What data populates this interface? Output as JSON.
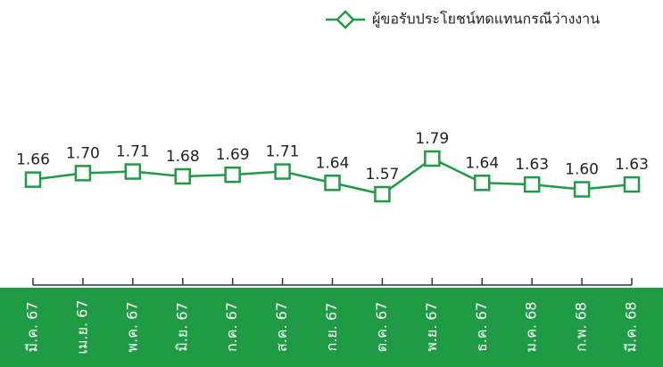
{
  "chart_data": {
    "type": "line",
    "categories": [
      "มี.ค. 67",
      "เม.ย. 67",
      "พ.ค. 67",
      "มิ.ย. 67",
      "ก.ค. 67",
      "ส.ค. 67",
      "ก.ย. 67",
      "ต.ค. 67",
      "พ.ย. 67",
      "ธ.ค. 67",
      "ม.ค. 68",
      "ก.พ. 68",
      "มี.ค. 68"
    ],
    "series": [
      {
        "name": "ผู้ขอรับประโยชน์ทดแทนกรณีว่างงาน",
        "color": "#1f9a45",
        "values": [
          1.66,
          1.7,
          1.71,
          1.68,
          1.69,
          1.71,
          1.64,
          1.57,
          1.79,
          1.64,
          1.63,
          1.6,
          1.63
        ],
        "value_labels": [
          "1.66",
          "1.70",
          "1.71",
          "1.68",
          "1.69",
          "1.71",
          "1.64",
          "1.57",
          "1.79",
          "1.64",
          "1.63",
          "1.60",
          "1.63"
        ]
      }
    ],
    "legend": "top-right",
    "band_color": "#1f9a45"
  }
}
